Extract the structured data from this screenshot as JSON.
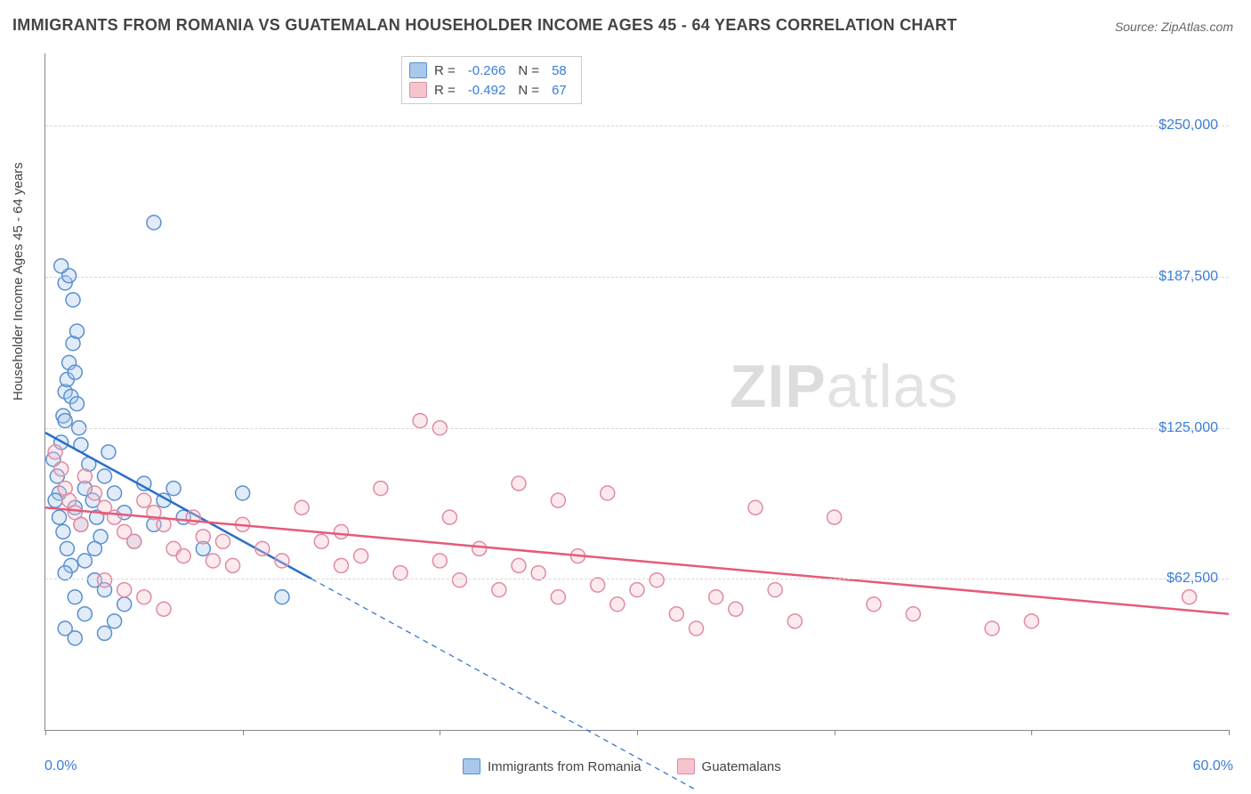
{
  "title": "IMMIGRANTS FROM ROMANIA VS GUATEMALAN HOUSEHOLDER INCOME AGES 45 - 64 YEARS CORRELATION CHART",
  "source": "Source: ZipAtlas.com",
  "y_axis_label": "Householder Income Ages 45 - 64 years",
  "watermark_bold": "ZIP",
  "watermark_thin": "atlas",
  "chart": {
    "type": "scatter",
    "background_color": "#ffffff",
    "grid_color": "#d8d8d8",
    "axis_color": "#888888",
    "text_color": "#444444",
    "value_color": "#3b7dd8",
    "xlim": [
      0,
      60
    ],
    "ylim": [
      0,
      280000
    ],
    "x_tick_positions": [
      0,
      10,
      20,
      30,
      40,
      50,
      60
    ],
    "x_tick_labels": {
      "0": "0.0%",
      "60": "60.0%"
    },
    "y_gridlines": [
      62500,
      125000,
      187500,
      250000
    ],
    "y_tick_labels": [
      "$62,500",
      "$125,000",
      "$187,500",
      "$250,000"
    ],
    "marker_radius": 8,
    "marker_stroke_width": 1.5,
    "marker_fill_opacity": 0.35,
    "line_width": 2.5,
    "series": [
      {
        "name": "Immigrants from Romania",
        "color_fill": "#a8c8ec",
        "color_stroke": "#5a8fd0",
        "line_color": "#2a6fc9",
        "R": "-0.266",
        "N": "58",
        "trend": {
          "x1": 0,
          "y1": 123000,
          "x2": 13.5,
          "y2": 62500,
          "dash_extend_to_x": 33
        },
        "points": [
          [
            0.4,
            112000
          ],
          [
            0.6,
            105000
          ],
          [
            0.7,
            98000
          ],
          [
            0.8,
            119000
          ],
          [
            0.9,
            130000
          ],
          [
            1.0,
            140000
          ],
          [
            1.0,
            128000
          ],
          [
            1.1,
            145000
          ],
          [
            1.2,
            152000
          ],
          [
            1.3,
            138000
          ],
          [
            1.4,
            160000
          ],
          [
            1.5,
            148000
          ],
          [
            1.6,
            135000
          ],
          [
            1.7,
            125000
          ],
          [
            1.8,
            118000
          ],
          [
            0.5,
            95000
          ],
          [
            0.7,
            88000
          ],
          [
            0.9,
            82000
          ],
          [
            1.1,
            75000
          ],
          [
            1.3,
            68000
          ],
          [
            1.5,
            92000
          ],
          [
            1.8,
            85000
          ],
          [
            2.0,
            100000
          ],
          [
            2.2,
            110000
          ],
          [
            2.4,
            95000
          ],
          [
            2.6,
            88000
          ],
          [
            2.8,
            80000
          ],
          [
            3.0,
            105000
          ],
          [
            3.2,
            115000
          ],
          [
            3.5,
            98000
          ],
          [
            4.0,
            90000
          ],
          [
            4.5,
            78000
          ],
          [
            5.0,
            102000
          ],
          [
            5.5,
            85000
          ],
          [
            6.0,
            95000
          ],
          [
            1.0,
            185000
          ],
          [
            1.2,
            188000
          ],
          [
            1.4,
            178000
          ],
          [
            1.6,
            165000
          ],
          [
            0.8,
            192000
          ],
          [
            5.5,
            210000
          ],
          [
            1.0,
            65000
          ],
          [
            1.5,
            55000
          ],
          [
            2.0,
            48000
          ],
          [
            2.5,
            62000
          ],
          [
            3.0,
            58000
          ],
          [
            3.5,
            45000
          ],
          [
            4.0,
            52000
          ],
          [
            2.0,
            70000
          ],
          [
            2.5,
            75000
          ],
          [
            3.0,
            40000
          ],
          [
            1.0,
            42000
          ],
          [
            1.5,
            38000
          ],
          [
            6.5,
            100000
          ],
          [
            7.0,
            88000
          ],
          [
            8.0,
            75000
          ],
          [
            12.0,
            55000
          ],
          [
            10.0,
            98000
          ]
        ]
      },
      {
        "name": "Guatemalans",
        "color_fill": "#f5c4cf",
        "color_stroke": "#e08ca0",
        "line_color": "#e65a7a",
        "R": "-0.492",
        "N": "67",
        "trend": {
          "x1": 0,
          "y1": 92000,
          "x2": 60,
          "y2": 48000
        },
        "points": [
          [
            0.5,
            115000
          ],
          [
            0.8,
            108000
          ],
          [
            1.0,
            100000
          ],
          [
            1.2,
            95000
          ],
          [
            1.5,
            90000
          ],
          [
            1.8,
            85000
          ],
          [
            2.0,
            105000
          ],
          [
            2.5,
            98000
          ],
          [
            3.0,
            92000
          ],
          [
            3.5,
            88000
          ],
          [
            4.0,
            82000
          ],
          [
            4.5,
            78000
          ],
          [
            5.0,
            95000
          ],
          [
            5.5,
            90000
          ],
          [
            6.0,
            85000
          ],
          [
            6.5,
            75000
          ],
          [
            7.0,
            72000
          ],
          [
            7.5,
            88000
          ],
          [
            8.0,
            80000
          ],
          [
            8.5,
            70000
          ],
          [
            9.0,
            78000
          ],
          [
            9.5,
            68000
          ],
          [
            10.0,
            85000
          ],
          [
            11.0,
            75000
          ],
          [
            12.0,
            70000
          ],
          [
            13.0,
            92000
          ],
          [
            14.0,
            78000
          ],
          [
            15.0,
            68000
          ],
          [
            16.0,
            72000
          ],
          [
            18.0,
            65000
          ],
          [
            19.0,
            128000
          ],
          [
            20.0,
            125000
          ],
          [
            20.0,
            70000
          ],
          [
            21.0,
            62000
          ],
          [
            22.0,
            75000
          ],
          [
            23.0,
            58000
          ],
          [
            24.0,
            68000
          ],
          [
            25.0,
            65000
          ],
          [
            26.0,
            55000
          ],
          [
            27.0,
            72000
          ],
          [
            28.0,
            60000
          ],
          [
            28.5,
            98000
          ],
          [
            29.0,
            52000
          ],
          [
            30.0,
            58000
          ],
          [
            31.0,
            62000
          ],
          [
            32.0,
            48000
          ],
          [
            33.0,
            42000
          ],
          [
            34.0,
            55000
          ],
          [
            35.0,
            50000
          ],
          [
            36.0,
            92000
          ],
          [
            37.0,
            58000
          ],
          [
            38.0,
            45000
          ],
          [
            40.0,
            88000
          ],
          [
            42.0,
            52000
          ],
          [
            44.0,
            48000
          ],
          [
            48.0,
            42000
          ],
          [
            50.0,
            45000
          ],
          [
            58.0,
            55000
          ],
          [
            3.0,
            62000
          ],
          [
            4.0,
            58000
          ],
          [
            5.0,
            55000
          ],
          [
            6.0,
            50000
          ],
          [
            24.0,
            102000
          ],
          [
            26.0,
            95000
          ],
          [
            20.5,
            88000
          ],
          [
            17.0,
            100000
          ],
          [
            15.0,
            82000
          ]
        ]
      }
    ]
  },
  "legend_bottom": [
    {
      "label": "Immigrants from Romania",
      "fill": "#a8c8ec",
      "stroke": "#5a8fd0"
    },
    {
      "label": "Guatemalans",
      "fill": "#f5c4cf",
      "stroke": "#e08ca0"
    }
  ]
}
